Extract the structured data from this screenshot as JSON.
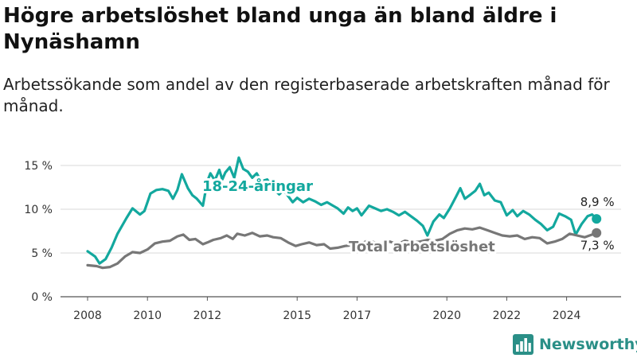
{
  "title": "Högre arbetslöshet bland unga än bland äldre i Nynäshamn",
  "subtitle": "Arbetssökande som andel av den registerbaserade arbetskraften månad för månad.",
  "brand": {
    "name": "Newsworthy",
    "color": "#2a8f87",
    "icon": "bar-chart-logo-icon"
  },
  "chart_data": {
    "type": "line",
    "title": "Högre arbetslöshet bland unga än bland äldre i Nynäshamn",
    "subtitle": "Arbetssökande som andel av den registerbaserade arbetskraften månad för månad.",
    "xlabel": "",
    "ylabel": "",
    "xlim": [
      2008,
      2025.75
    ],
    "ylim": [
      0,
      15
    ],
    "y_ticks": [
      0,
      5,
      10,
      15
    ],
    "y_tick_labels": [
      "0 %",
      "5 %",
      "10 %",
      "15 %"
    ],
    "x_ticks": [
      2008,
      2010,
      2012,
      2015,
      2017,
      2020,
      2022,
      2024
    ],
    "x_tick_labels": [
      "2008",
      "2010",
      "2012",
      "2015",
      "2017",
      "2020",
      "2022",
      "2024"
    ],
    "grid": {
      "horizontal": true,
      "vertical": false
    },
    "legend": "inline labels",
    "series": [
      {
        "name": "18-24-åringar",
        "color": "#13a89e",
        "end_label": "8,9 %",
        "points": [
          [
            2008.0,
            5.2
          ],
          [
            2008.25,
            4.6
          ],
          [
            2008.4,
            3.8
          ],
          [
            2008.6,
            4.3
          ],
          [
            2008.8,
            5.6
          ],
          [
            2009.0,
            7.2
          ],
          [
            2009.3,
            9.0
          ],
          [
            2009.5,
            10.1
          ],
          [
            2009.75,
            9.4
          ],
          [
            2009.9,
            9.8
          ],
          [
            2010.1,
            11.8
          ],
          [
            2010.3,
            12.2
          ],
          [
            2010.5,
            12.3
          ],
          [
            2010.7,
            12.1
          ],
          [
            2010.85,
            11.2
          ],
          [
            2011.0,
            12.2
          ],
          [
            2011.15,
            14.0
          ],
          [
            2011.35,
            12.4
          ],
          [
            2011.5,
            11.6
          ],
          [
            2011.65,
            11.2
          ],
          [
            2011.85,
            10.4
          ],
          [
            2012.0,
            13.2
          ],
          [
            2012.1,
            14.1
          ],
          [
            2012.25,
            13.3
          ],
          [
            2012.4,
            14.5
          ],
          [
            2012.5,
            13.4
          ],
          [
            2012.6,
            14.2
          ],
          [
            2012.75,
            14.8
          ],
          [
            2012.9,
            13.6
          ],
          [
            2013.05,
            15.9
          ],
          [
            2013.2,
            14.6
          ],
          [
            2013.35,
            14.3
          ],
          [
            2013.5,
            13.6
          ],
          [
            2013.65,
            14.1
          ],
          [
            2013.8,
            13.2
          ],
          [
            2014.0,
            13.4
          ],
          [
            2014.2,
            12.4
          ],
          [
            2014.4,
            11.7
          ],
          [
            2014.55,
            12.2
          ],
          [
            2014.7,
            11.5
          ],
          [
            2014.85,
            10.8
          ],
          [
            2015.0,
            11.3
          ],
          [
            2015.2,
            10.8
          ],
          [
            2015.4,
            11.2
          ],
          [
            2015.6,
            10.9
          ],
          [
            2015.8,
            10.5
          ],
          [
            2016.0,
            10.8
          ],
          [
            2016.2,
            10.4
          ],
          [
            2016.35,
            10.1
          ],
          [
            2016.55,
            9.5
          ],
          [
            2016.7,
            10.2
          ],
          [
            2016.85,
            9.8
          ],
          [
            2017.0,
            10.1
          ],
          [
            2017.15,
            9.3
          ],
          [
            2017.4,
            10.4
          ],
          [
            2017.6,
            10.1
          ],
          [
            2017.8,
            9.8
          ],
          [
            2018.0,
            10.0
          ],
          [
            2018.2,
            9.7
          ],
          [
            2018.4,
            9.3
          ],
          [
            2018.6,
            9.7
          ],
          [
            2018.8,
            9.2
          ],
          [
            2019.0,
            8.7
          ],
          [
            2019.2,
            8.1
          ],
          [
            2019.35,
            7.0
          ],
          [
            2019.55,
            8.6
          ],
          [
            2019.75,
            9.4
          ],
          [
            2019.9,
            9.0
          ],
          [
            2020.1,
            10.1
          ],
          [
            2020.3,
            11.4
          ],
          [
            2020.45,
            12.4
          ],
          [
            2020.6,
            11.2
          ],
          [
            2020.8,
            11.7
          ],
          [
            2020.95,
            12.1
          ],
          [
            2021.1,
            12.9
          ],
          [
            2021.25,
            11.6
          ],
          [
            2021.4,
            11.9
          ],
          [
            2021.6,
            11.0
          ],
          [
            2021.8,
            10.8
          ],
          [
            2022.0,
            9.3
          ],
          [
            2022.2,
            9.9
          ],
          [
            2022.35,
            9.2
          ],
          [
            2022.55,
            9.8
          ],
          [
            2022.75,
            9.4
          ],
          [
            2022.95,
            8.8
          ],
          [
            2023.15,
            8.3
          ],
          [
            2023.35,
            7.6
          ],
          [
            2023.55,
            8.0
          ],
          [
            2023.75,
            9.5
          ],
          [
            2023.95,
            9.2
          ],
          [
            2024.15,
            8.8
          ],
          [
            2024.3,
            7.1
          ],
          [
            2024.5,
            8.3
          ],
          [
            2024.7,
            9.2
          ],
          [
            2024.85,
            9.4
          ],
          [
            2025.0,
            8.9
          ]
        ]
      },
      {
        "name": "Total arbetslöshet",
        "color": "#777777",
        "end_label": "7,3 %",
        "points": [
          [
            2008.0,
            3.6
          ],
          [
            2008.3,
            3.5
          ],
          [
            2008.5,
            3.3
          ],
          [
            2008.75,
            3.4
          ],
          [
            2009.0,
            3.8
          ],
          [
            2009.25,
            4.6
          ],
          [
            2009.5,
            5.1
          ],
          [
            2009.75,
            5.0
          ],
          [
            2010.0,
            5.4
          ],
          [
            2010.25,
            6.1
          ],
          [
            2010.5,
            6.3
          ],
          [
            2010.75,
            6.4
          ],
          [
            2011.0,
            6.9
          ],
          [
            2011.2,
            7.1
          ],
          [
            2011.4,
            6.5
          ],
          [
            2011.6,
            6.6
          ],
          [
            2011.85,
            6.0
          ],
          [
            2012.0,
            6.2
          ],
          [
            2012.2,
            6.5
          ],
          [
            2012.45,
            6.7
          ],
          [
            2012.65,
            7.0
          ],
          [
            2012.85,
            6.6
          ],
          [
            2013.0,
            7.2
          ],
          [
            2013.25,
            7.0
          ],
          [
            2013.5,
            7.3
          ],
          [
            2013.75,
            6.9
          ],
          [
            2014.0,
            7.0
          ],
          [
            2014.2,
            6.8
          ],
          [
            2014.45,
            6.7
          ],
          [
            2014.7,
            6.2
          ],
          [
            2014.95,
            5.8
          ],
          [
            2015.15,
            6.0
          ],
          [
            2015.4,
            6.2
          ],
          [
            2015.65,
            5.9
          ],
          [
            2015.9,
            6.0
          ],
          [
            2016.1,
            5.5
          ],
          [
            2016.35,
            5.6
          ],
          [
            2016.6,
            5.8
          ],
          [
            2016.85,
            5.9
          ],
          [
            2017.1,
            6.0
          ],
          [
            2017.35,
            6.4
          ],
          [
            2017.6,
            6.2
          ],
          [
            2017.85,
            6.1
          ],
          [
            2018.1,
            6.3
          ],
          [
            2018.35,
            6.0
          ],
          [
            2018.6,
            6.4
          ],
          [
            2018.85,
            6.2
          ],
          [
            2019.1,
            6.3
          ],
          [
            2019.35,
            6.5
          ],
          [
            2019.6,
            6.4
          ],
          [
            2019.85,
            6.6
          ],
          [
            2020.1,
            7.2
          ],
          [
            2020.35,
            7.6
          ],
          [
            2020.6,
            7.8
          ],
          [
            2020.85,
            7.7
          ],
          [
            2021.1,
            7.9
          ],
          [
            2021.35,
            7.6
          ],
          [
            2021.6,
            7.3
          ],
          [
            2021.85,
            7.0
          ],
          [
            2022.1,
            6.9
          ],
          [
            2022.35,
            7.0
          ],
          [
            2022.6,
            6.6
          ],
          [
            2022.85,
            6.8
          ],
          [
            2023.1,
            6.7
          ],
          [
            2023.35,
            6.1
          ],
          [
            2023.6,
            6.3
          ],
          [
            2023.85,
            6.6
          ],
          [
            2024.1,
            7.2
          ],
          [
            2024.35,
            7.0
          ],
          [
            2024.6,
            6.8
          ],
          [
            2024.85,
            7.1
          ],
          [
            2025.0,
            7.3
          ]
        ]
      }
    ]
  }
}
